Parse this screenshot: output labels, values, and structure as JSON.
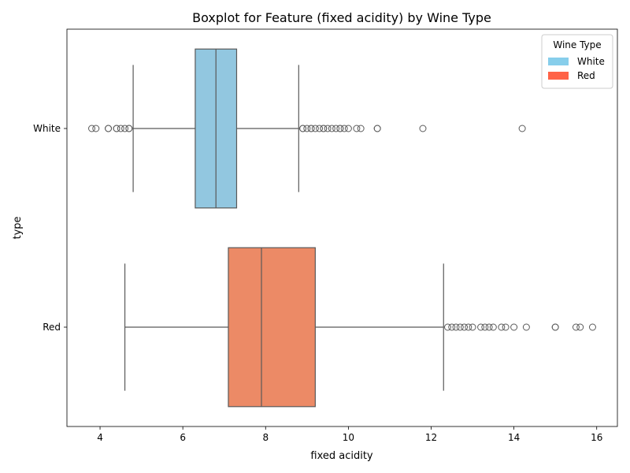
{
  "chart_data": {
    "type": "boxplot",
    "orientation": "horizontal",
    "title": "Boxplot for Feature (fixed acidity) by Wine Type",
    "xlabel": "fixed acidity",
    "ylabel": "type",
    "xlim": [
      3.2,
      16.5
    ],
    "xticks": [
      4,
      6,
      8,
      10,
      12,
      14,
      16
    ],
    "categories": [
      "White",
      "Red"
    ],
    "grid": false,
    "legend": {
      "title": "Wine Type",
      "placement": "top-right",
      "items": [
        {
          "label": "White",
          "color": "#87ceeb"
        },
        {
          "label": "Red",
          "color": "#ff6347"
        }
      ]
    },
    "series": [
      {
        "category": "White",
        "box_color": "#92c7e0",
        "whisker_low": 4.8,
        "q1": 6.3,
        "median": 6.8,
        "q3": 7.3,
        "whisker_high": 8.8,
        "outliers": [
          3.8,
          3.9,
          4.2,
          4.2,
          4.4,
          4.4,
          4.5,
          4.6,
          4.7,
          4.7,
          8.9,
          8.9,
          9.0,
          9.1,
          9.1,
          9.2,
          9.3,
          9.4,
          9.4,
          9.5,
          9.6,
          9.7,
          9.8,
          9.8,
          9.9,
          10.0,
          10.2,
          10.3,
          10.7,
          10.7,
          11.8,
          14.2
        ]
      },
      {
        "category": "Red",
        "box_color": "#ec8a66",
        "whisker_low": 4.6,
        "q1": 7.1,
        "median": 7.9,
        "q3": 9.2,
        "whisker_high": 12.3,
        "outliers": [
          12.4,
          12.5,
          12.6,
          12.7,
          12.8,
          12.9,
          13.0,
          13.2,
          13.3,
          13.4,
          13.5,
          13.7,
          13.8,
          14.0,
          14.3,
          15.0,
          15.0,
          15.5,
          15.6,
          15.9
        ]
      }
    ]
  }
}
